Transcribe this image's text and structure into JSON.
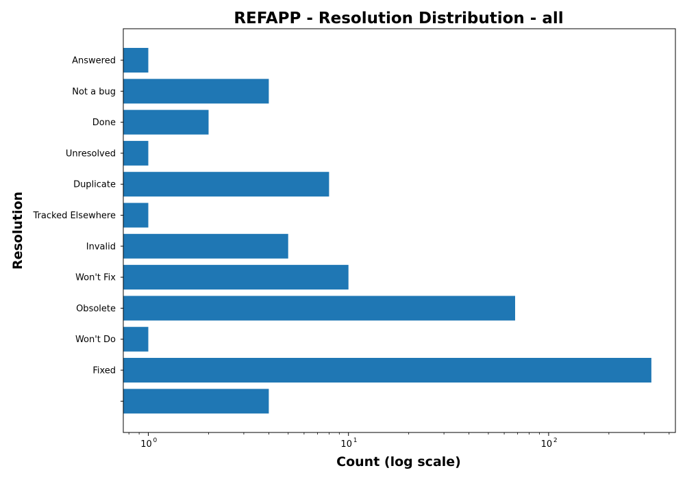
{
  "chart_data": {
    "type": "bar",
    "orientation": "horizontal",
    "title": "REFAPP - Resolution Distribution - all",
    "xlabel": "Count (log scale)",
    "ylabel": "Resolution",
    "x_scale": "log",
    "xlim": [
      0.75,
      430
    ],
    "x_ticks": [
      {
        "base": "10",
        "exp": "0",
        "value": 1
      },
      {
        "base": "10",
        "exp": "1",
        "value": 10
      },
      {
        "base": "10",
        "exp": "2",
        "value": 100
      }
    ],
    "categories": [
      "Answered",
      "Not a bug",
      "Done",
      "Unresolved",
      "Duplicate",
      "Tracked Elsewhere",
      "Invalid",
      "Won't Fix",
      "Obsolete",
      "Won't Do",
      "Fixed",
      ""
    ],
    "values": [
      1,
      4,
      2,
      1,
      8,
      1,
      5,
      10,
      68,
      1,
      326,
      4
    ],
    "bar_color": "#1f77b4",
    "grid": false,
    "legend": "none"
  }
}
